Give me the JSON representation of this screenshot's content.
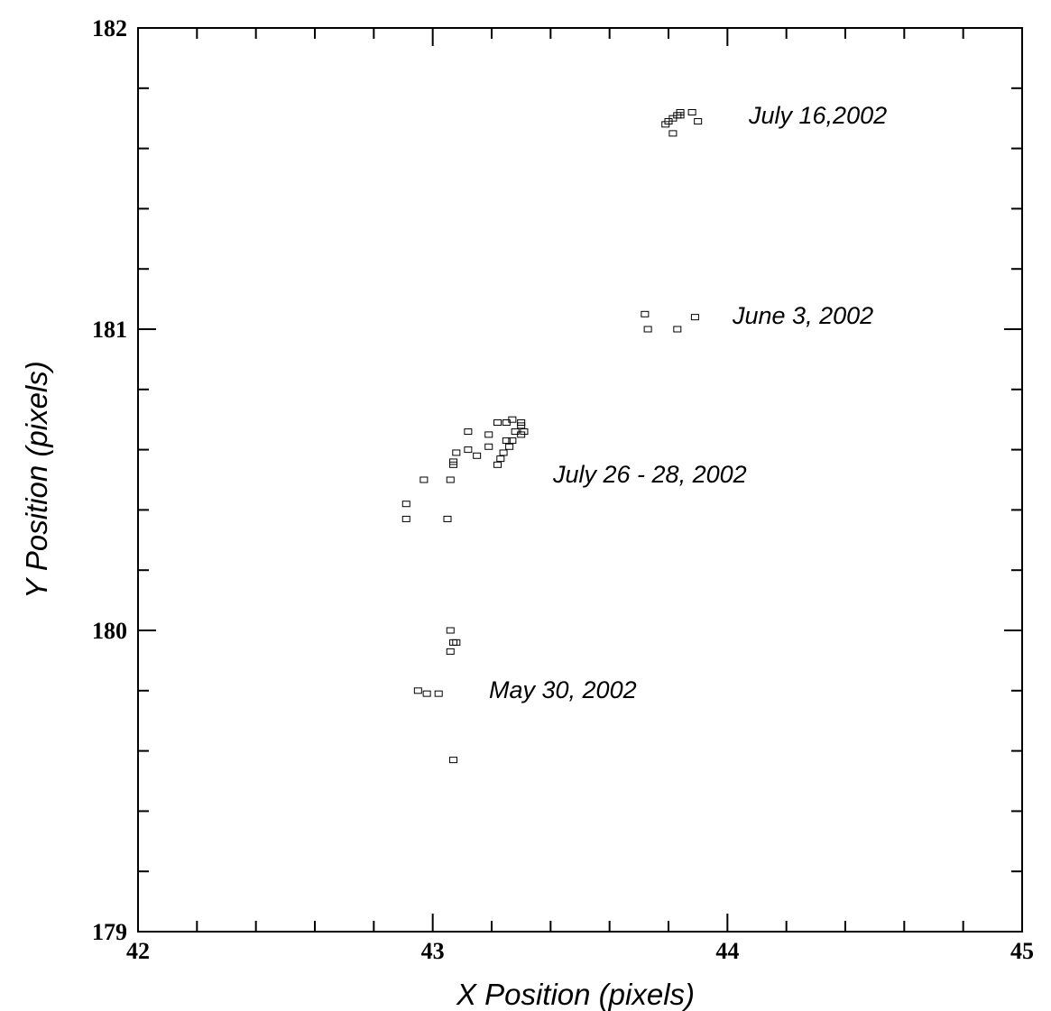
{
  "chart_data": {
    "type": "scatter",
    "xlabel": "X Position (pixels)",
    "ylabel": "Y Position (pixels)",
    "annotations": [
      "July 16,2002",
      "June 3, 2002",
      "July 26 - 28, 2002",
      "May 30, 2002"
    ],
    "x": [
      43.79,
      43.8,
      43.815,
      43.83,
      43.84,
      43.84,
      43.815,
      43.88,
      43.9,
      43.72,
      43.73,
      43.83,
      43.89,
      43.22,
      43.25,
      43.27,
      43.3,
      43.3,
      43.31,
      43.3,
      43.28,
      43.27,
      43.26,
      43.25,
      43.24,
      43.23,
      43.22,
      43.19,
      43.19,
      43.12,
      43.12,
      43.15,
      43.08,
      43.07,
      43.07,
      42.97,
      43.06,
      42.91,
      42.91,
      43.05,
      43.06,
      43.08,
      43.07,
      43.06,
      42.95,
      42.98,
      43.02,
      43.07
    ],
    "values": [
      181.68,
      181.69,
      181.7,
      181.71,
      181.72,
      181.71,
      181.65,
      181.72,
      181.69,
      181.05,
      181.0,
      181.0,
      181.04,
      180.69,
      180.69,
      180.7,
      180.69,
      180.68,
      180.66,
      180.65,
      180.66,
      180.63,
      180.61,
      180.63,
      180.59,
      180.57,
      180.55,
      180.65,
      180.61,
      180.66,
      180.6,
      180.58,
      180.59,
      180.56,
      180.55,
      180.5,
      180.5,
      180.42,
      180.37,
      180.37,
      180.0,
      179.96,
      179.96,
      179.93,
      179.8,
      179.79,
      179.79,
      179.57
    ],
    "color": "#000000",
    "xlim": [
      42,
      45
    ],
    "xticks": [
      42,
      43,
      44,
      45
    ],
    "ylim": [
      179,
      182
    ],
    "yticks": [
      179,
      180,
      181,
      182
    ],
    "x_minor_ticks": [
      42.2,
      42.4,
      42.6,
      42.8,
      43.2,
      43.4,
      43.6,
      43.8,
      44.2,
      44.4,
      44.6,
      44.8
    ],
    "y_minor_ticks": [
      179.2,
      179.4,
      179.6,
      179.8,
      180.2,
      180.4,
      180.6,
      180.8,
      181.2,
      181.4,
      181.6,
      181.8
    ]
  }
}
